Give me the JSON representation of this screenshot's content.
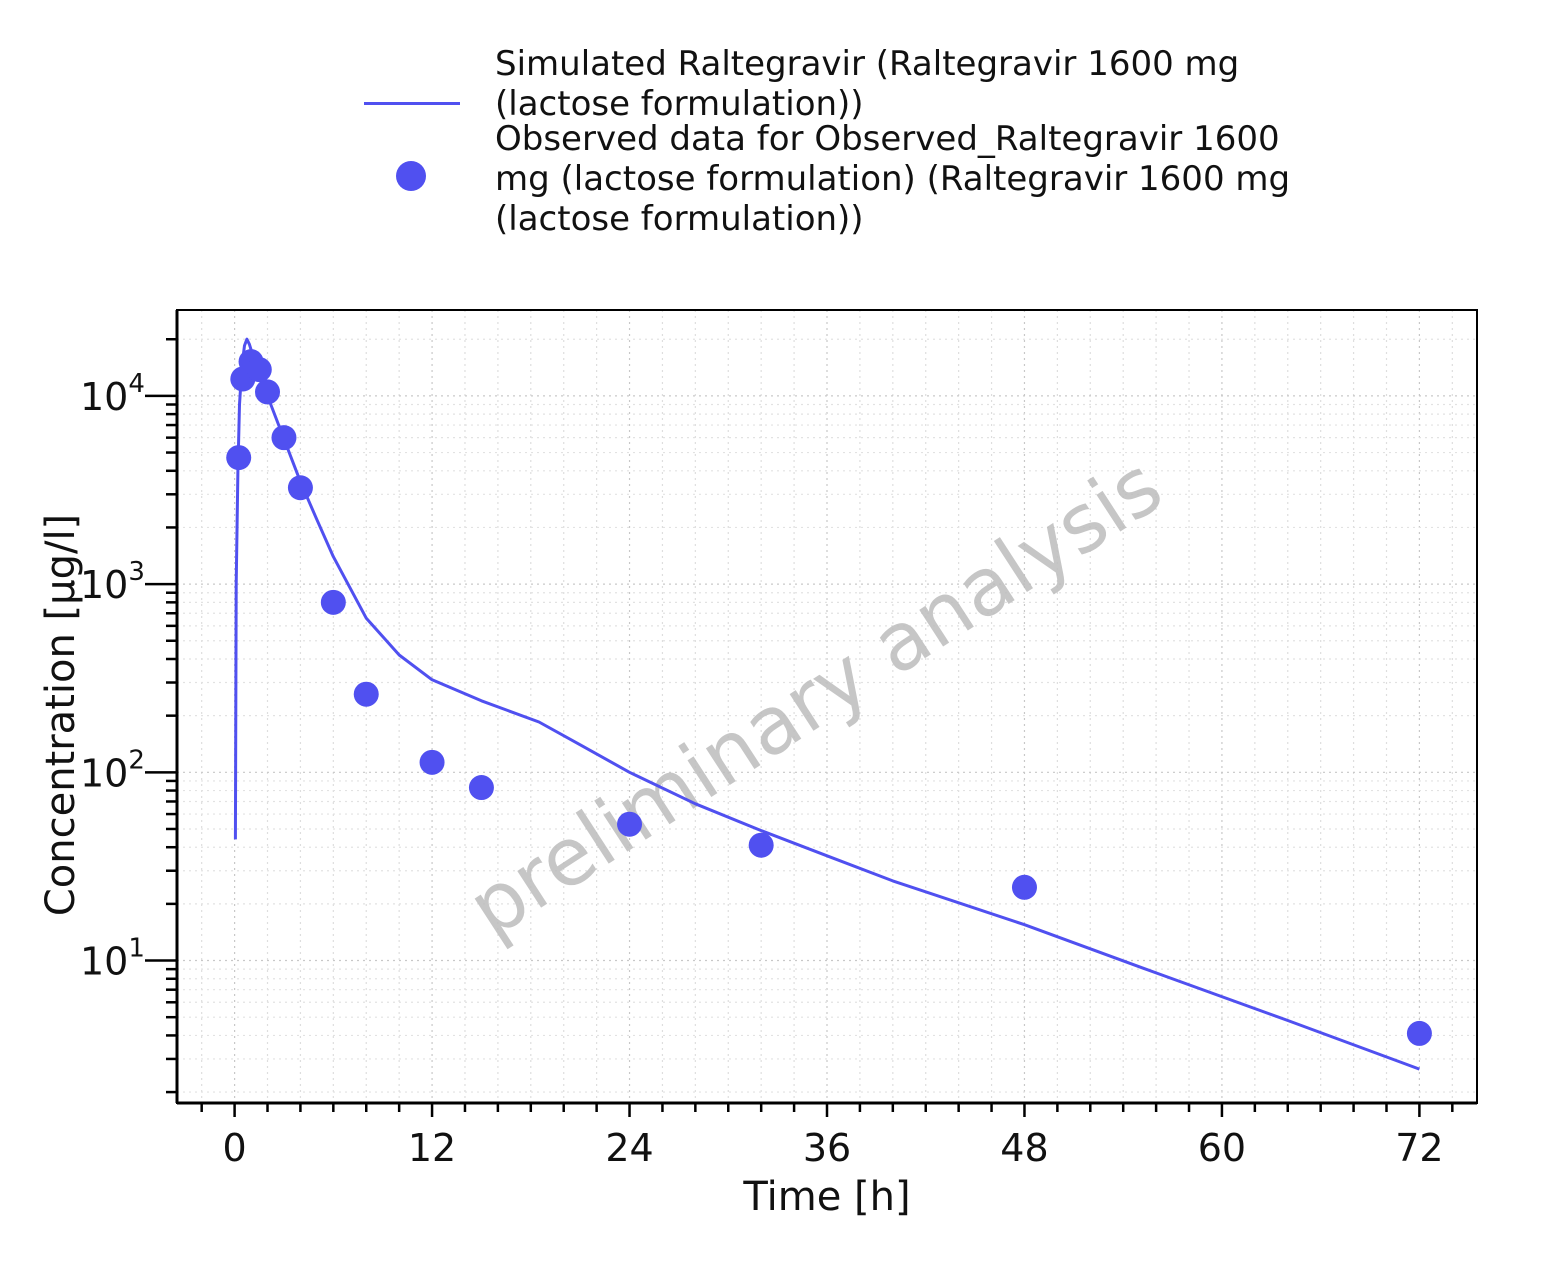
{
  "chart_data": {
    "type": "line",
    "xlabel": "Time [h]",
    "ylabel": "Concentration [µg/l]",
    "xlim": [
      -3.5,
      75.5
    ],
    "xticks": [
      0,
      12,
      24,
      36,
      48,
      60,
      72
    ],
    "yscale": "log",
    "ylim": [
      1.75,
      28600
    ],
    "yticks": [
      {
        "value": 10,
        "base": "10",
        "exp": "1"
      },
      {
        "value": 100,
        "base": "10",
        "exp": "2"
      },
      {
        "value": 1000,
        "base": "10",
        "exp": "3"
      },
      {
        "value": 10000,
        "base": "10",
        "exp": "4"
      }
    ],
    "grid": true,
    "legend_position": "top",
    "series": [
      {
        "name": "Simulated Raltegravir (Raltegravir 1600 mg\n(lactose formulation))",
        "kind": "line",
        "color": "#5050f0",
        "x": [
          0.05,
          0.1,
          0.2,
          0.3,
          0.45,
          0.6,
          0.75,
          0.9,
          1.1,
          1.3,
          1.5,
          1.8,
          2.2,
          3.0,
          4.0,
          5.0,
          6.0,
          8.0,
          10.0,
          12.0,
          15.0,
          18.5,
          21.0,
          24.0,
          28.0,
          32.0,
          36.0,
          40.0,
          48.0,
          56.0,
          64.0,
          72.0
        ],
        "y": [
          44,
          1000,
          4000,
          9000,
          14500,
          18500,
          20000,
          18800,
          16500,
          14000,
          12500,
          11000,
          9000,
          5900,
          3500,
          2200,
          1400,
          660,
          420,
          310,
          240,
          185,
          140,
          100,
          68,
          49,
          36,
          26.5,
          15.5,
          8.6,
          4.8,
          2.65
        ]
      },
      {
        "name": "Observed data for Observed_Raltegravir 1600\nmg (lactose formulation) (Raltegravir 1600 mg\n(lactose formulation))",
        "kind": "scatter",
        "color": "#5050f0",
        "x": [
          0.25,
          0.5,
          1.0,
          1.5,
          2.0,
          3.0,
          4.0,
          6.0,
          8.0,
          12.0,
          15.0,
          24.0,
          32.0,
          48.0,
          72.0
        ],
        "y": [
          4700,
          12300,
          15200,
          13800,
          10500,
          6000,
          3250,
          800,
          260,
          113,
          83,
          53,
          41,
          24.5,
          4.1
        ]
      }
    ],
    "annotation": "preliminary analysis"
  }
}
